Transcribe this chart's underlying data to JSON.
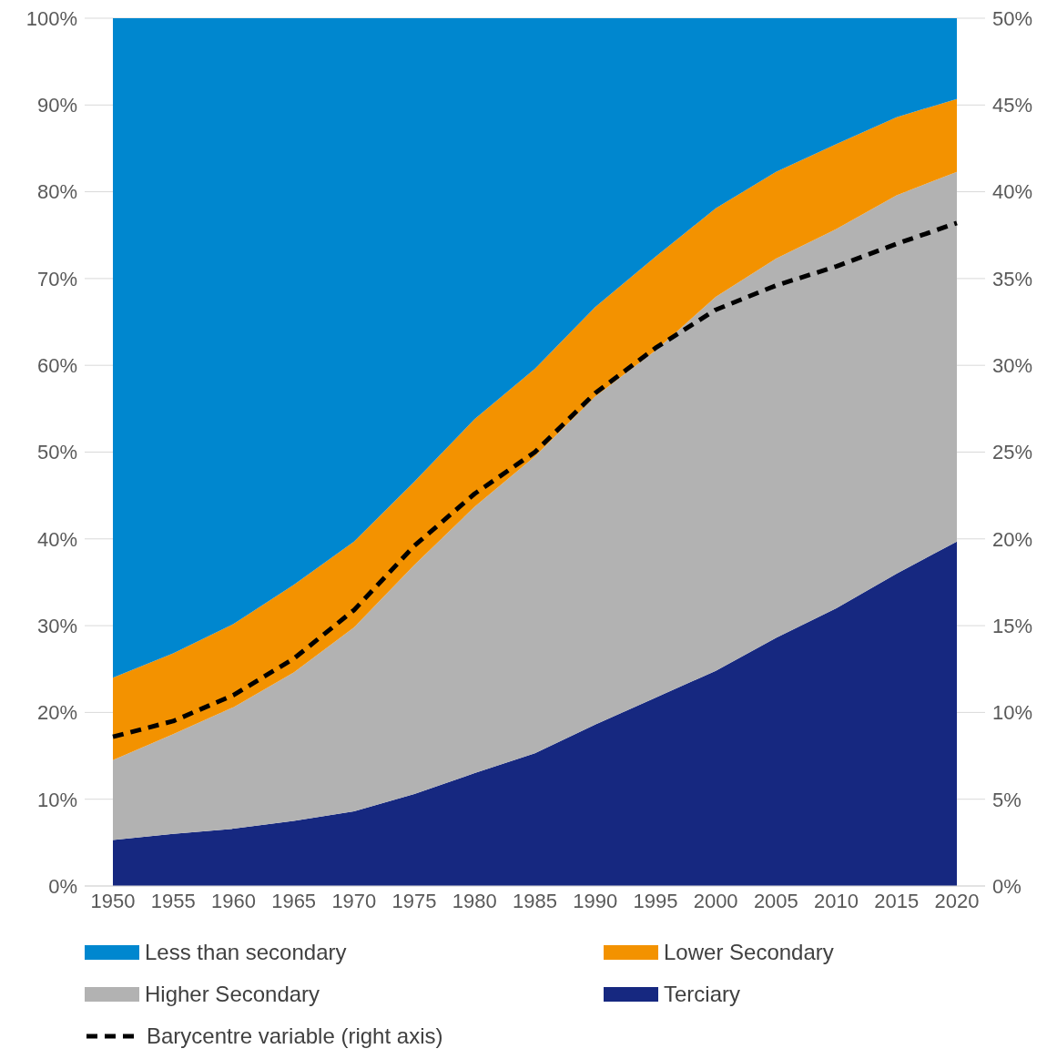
{
  "chart_data": {
    "type": "area",
    "stacked": true,
    "categories": [
      "1950",
      "1955",
      "1960",
      "1965",
      "1970",
      "1975",
      "1980",
      "1985",
      "1990",
      "1995",
      "2000",
      "2005",
      "2010",
      "2015",
      "2020"
    ],
    "series": [
      {
        "name": "Terciary",
        "color": "#162880",
        "values": [
          5.3,
          6.0,
          6.6,
          7.5,
          8.6,
          10.6,
          13.0,
          15.3,
          18.6,
          21.7,
          24.8,
          28.6,
          32.0,
          36.0,
          39.7
        ]
      },
      {
        "name": "Higher Secondary",
        "color": "#b2b2b2",
        "values": [
          9.2,
          11.5,
          14.0,
          17.1,
          21.2,
          26.4,
          30.7,
          34.2,
          37.8,
          40.0,
          43.1,
          43.7,
          43.7,
          43.6,
          42.6
        ]
      },
      {
        "name": "Lower Secondary",
        "color": "#f39200",
        "values": [
          9.5,
          9.3,
          9.6,
          10.1,
          9.9,
          9.6,
          10.1,
          10.1,
          10.3,
          10.8,
          10.2,
          10.0,
          9.8,
          9.0,
          8.4
        ]
      },
      {
        "name": "Less than secondary",
        "color": "#0087cf",
        "values": [
          76.0,
          73.2,
          69.8,
          65.3,
          60.3,
          53.4,
          46.2,
          40.4,
          33.3,
          27.5,
          21.9,
          17.7,
          14.5,
          11.4,
          9.3
        ]
      },
      {
        "name": "Barycentre variable (right axis)",
        "type": "line",
        "axis": "y2",
        "color": "#000000",
        "line_style": "dashed",
        "values": [
          8.6,
          9.5,
          11.0,
          13.1,
          15.9,
          19.6,
          22.6,
          25.0,
          28.4,
          31.0,
          33.2,
          34.6,
          35.7,
          37.0,
          38.2
        ]
      }
    ],
    "ylim": [
      0,
      100
    ],
    "yticks": [
      {
        "value": 0,
        "label": "0%"
      },
      {
        "value": 10,
        "label": "10%"
      },
      {
        "value": 20,
        "label": "20%"
      },
      {
        "value": 30,
        "label": "30%"
      },
      {
        "value": 40,
        "label": "40%"
      },
      {
        "value": 50,
        "label": "50%"
      },
      {
        "value": 60,
        "label": "60%"
      },
      {
        "value": 70,
        "label": "70%"
      },
      {
        "value": 80,
        "label": "80%"
      },
      {
        "value": 90,
        "label": "90%"
      },
      {
        "value": 100,
        "label": "100%"
      }
    ],
    "y2lim": [
      0,
      50
    ],
    "y2ticks": [
      {
        "value": 0,
        "label": "0%"
      },
      {
        "value": 5,
        "label": "5%"
      },
      {
        "value": 10,
        "label": "10%"
      },
      {
        "value": 15,
        "label": "15%"
      },
      {
        "value": 20,
        "label": "20%"
      },
      {
        "value": 25,
        "label": "25%"
      },
      {
        "value": 30,
        "label": "30%"
      },
      {
        "value": 35,
        "label": "35%"
      },
      {
        "value": 40,
        "label": "40%"
      },
      {
        "value": 45,
        "label": "45%"
      },
      {
        "value": 50,
        "label": "50%"
      }
    ],
    "grid": "y",
    "legend": "bottom"
  }
}
